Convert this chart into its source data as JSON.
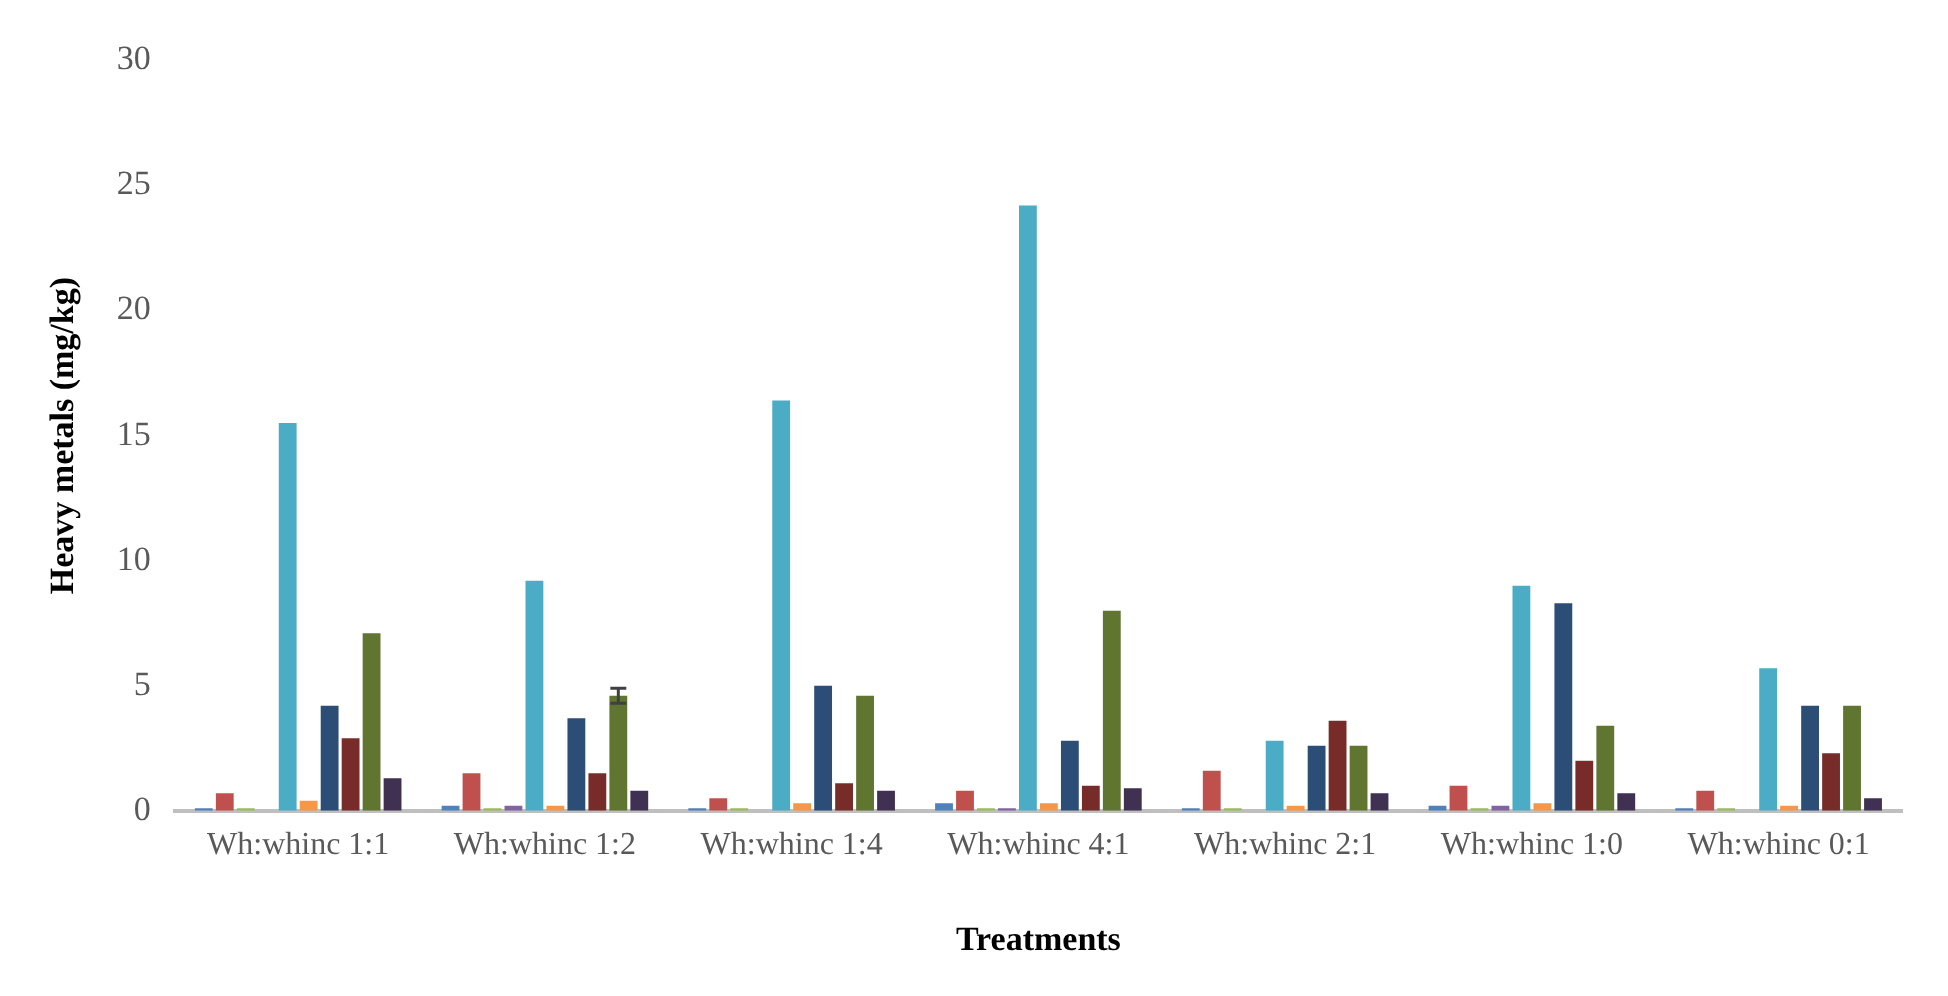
{
  "chart_data": {
    "type": "bar",
    "xlabel": "Treatments",
    "ylabel": "Heavy metals (mg/kg)",
    "categories": [
      "Wh:whinc 1:1",
      "Wh:whinc 1:2",
      "Wh:whinc 1:4",
      "Wh:whinc 4:1",
      "Wh:whinc 2:1",
      "Wh:whinc 1:0",
      "Wh:whinc 0:1"
    ],
    "series": [
      {
        "color": "#4f81bd",
        "values": [
          0.1,
          0.2,
          0.1,
          0.3,
          0.1,
          0.2,
          0.1
        ]
      },
      {
        "color": "#c0504d",
        "values": [
          0.7,
          1.5,
          0.5,
          0.8,
          1.6,
          1.0,
          0.8
        ]
      },
      {
        "color": "#9bbb59",
        "values": [
          0.1,
          0.1,
          0.1,
          0.1,
          0.1,
          0.1,
          0.1
        ]
      },
      {
        "color": "#8064a2",
        "values": [
          0,
          0.2,
          0,
          0.1,
          0,
          0.2,
          0
        ]
      },
      {
        "color": "#4bacc6",
        "values": [
          15.5,
          9.2,
          16.4,
          24.2,
          2.8,
          9.0,
          5.7
        ]
      },
      {
        "color": "#f79646",
        "values": [
          0.4,
          0.2,
          0.3,
          0.3,
          0.2,
          0.3,
          0.2
        ]
      },
      {
        "color": "#2c4d75",
        "values": [
          4.2,
          3.7,
          5.0,
          2.8,
          2.6,
          8.3,
          4.2
        ]
      },
      {
        "color": "#772c2a",
        "values": [
          2.9,
          1.5,
          1.1,
          1.0,
          3.6,
          2.0,
          2.3
        ]
      },
      {
        "color": "#5f7530",
        "values": [
          7.1,
          4.6,
          4.6,
          8.0,
          2.6,
          3.4,
          4.2
        ],
        "errors": [
          null,
          0.3,
          null,
          null,
          null,
          null,
          null
        ]
      },
      {
        "color": "#403152",
        "values": [
          1.3,
          0.8,
          0.8,
          0.9,
          0.7,
          0.7,
          0.5
        ]
      }
    ],
    "ylim": [
      0,
      30
    ],
    "yticks": [
      0,
      5,
      10,
      15,
      20,
      25,
      30
    ],
    "grid": false,
    "legend": false
  }
}
